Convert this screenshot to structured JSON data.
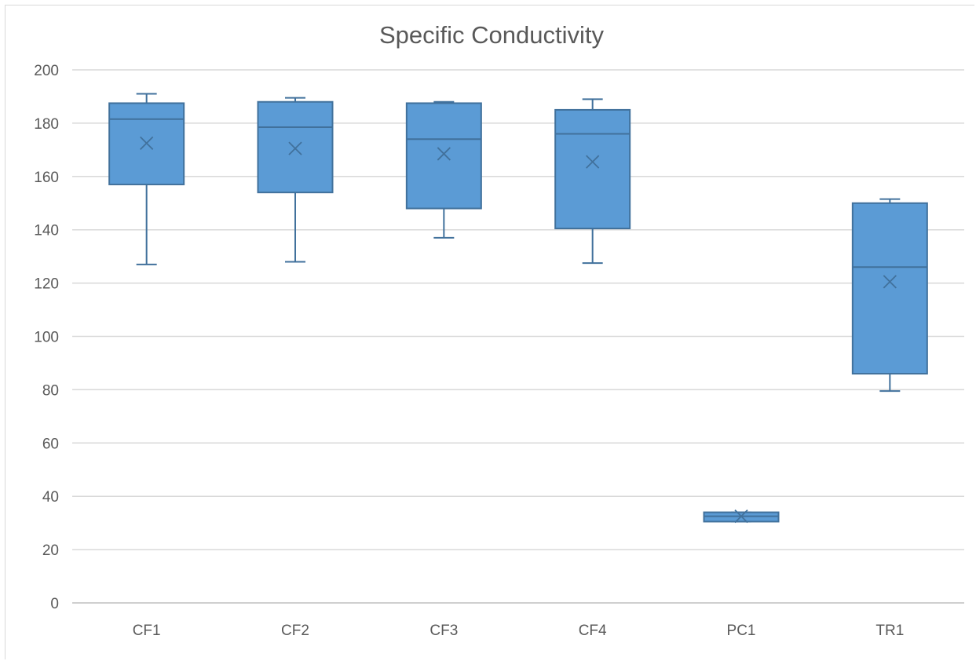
{
  "chart_data": {
    "type": "box",
    "title": "Specific Conductivity",
    "xlabel": "",
    "ylabel": "",
    "ylim": [
      0,
      200
    ],
    "yticks": [
      0,
      20,
      40,
      60,
      80,
      100,
      120,
      140,
      160,
      180,
      200
    ],
    "grid": true,
    "legend": "none",
    "categories": [
      "CF1",
      "CF2",
      "CF3",
      "CF4",
      "PC1",
      "TR1"
    ],
    "boxes": [
      {
        "category": "CF1",
        "min": 127,
        "q1": 157,
        "median": 181.5,
        "q3": 187.5,
        "max": 191,
        "mean": 172.5
      },
      {
        "category": "CF2",
        "min": 128,
        "q1": 154,
        "median": 178.5,
        "q3": 188,
        "max": 189.5,
        "mean": 170.5
      },
      {
        "category": "CF3",
        "min": 137,
        "q1": 148,
        "median": 174,
        "q3": 187.5,
        "max": 188,
        "mean": 168.5
      },
      {
        "category": "CF4",
        "min": 127.5,
        "q1": 140.5,
        "median": 176,
        "q3": 185,
        "max": 189,
        "mean": 165.5
      },
      {
        "category": "PC1",
        "min": 30.5,
        "q1": 30.5,
        "median": 32.5,
        "q3": 34,
        "max": 34,
        "mean": 32.5
      },
      {
        "category": "TR1",
        "min": 79.5,
        "q1": 86,
        "median": 126,
        "q3": 150,
        "max": 151.5,
        "mean": 120.5
      }
    ],
    "colors": {
      "box_fill": "#5b9bd5",
      "box_stroke": "#41719c",
      "grid": "#d9d9d9",
      "text": "#595959",
      "axis": "#bfbfbf"
    }
  }
}
